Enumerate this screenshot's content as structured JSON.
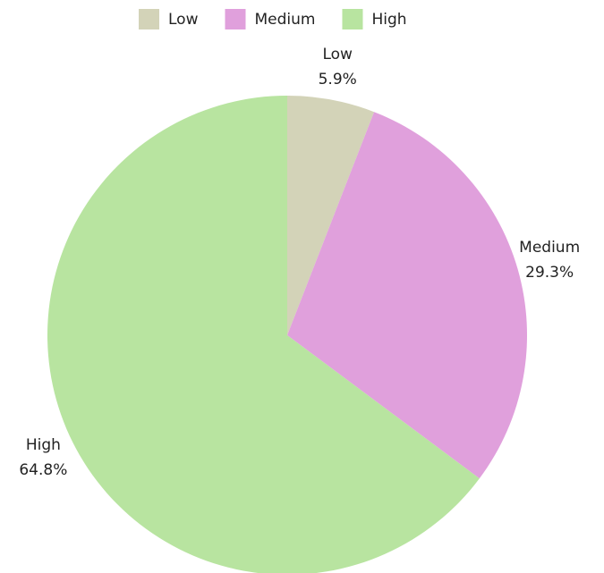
{
  "chart_data": {
    "type": "pie",
    "categories": [
      "Low",
      "Medium",
      "High"
    ],
    "values": [
      5.9,
      29.3,
      64.8
    ],
    "value_labels": [
      "5.9%",
      "29.3%",
      "64.8%"
    ],
    "colors": [
      "#d3d3b8",
      "#e0a0dc",
      "#b8e4a0"
    ],
    "legend": "top"
  }
}
